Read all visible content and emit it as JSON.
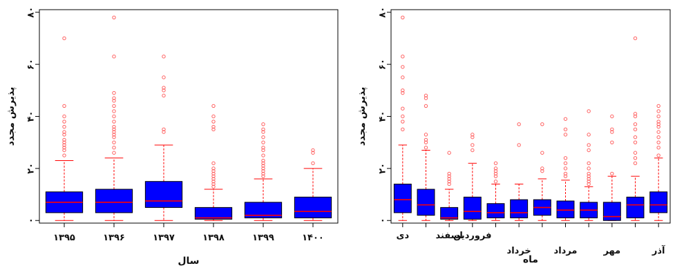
{
  "chart_data": [
    {
      "type": "boxplot",
      "xlabel": "سال",
      "ylabel": "پذیرش مجدد",
      "ylim": [
        -1,
        81
      ],
      "yticks": [
        0,
        20,
        40,
        60,
        80
      ],
      "ytick_labels": [
        "۰",
        "۲۰",
        "۴۰",
        "۶۰",
        "۸۰"
      ],
      "categories": [
        "۱۳۹۵",
        "۱۳۹۶",
        "۱۳۹۷",
        "۱۳۹۸",
        "۱۳۹۹",
        "۱۴۰۰"
      ],
      "boxes": [
        {
          "whisker_low": 0,
          "q1": 3,
          "median": 7,
          "q3": 11,
          "whisker_high": 23,
          "outliers": [
            25,
            27,
            28,
            29,
            30,
            31,
            33,
            34,
            36,
            38,
            40,
            44,
            70
          ]
        },
        {
          "whisker_low": 0,
          "q1": 3,
          "median": 7,
          "q3": 12,
          "whisker_high": 24,
          "outliers": [
            26,
            28,
            30,
            32,
            33,
            34,
            35,
            36,
            38,
            40,
            42,
            44,
            46,
            47,
            49,
            63,
            78
          ]
        },
        {
          "whisker_low": 0,
          "q1": 5,
          "median": 7.5,
          "q3": 15,
          "whisker_high": 29,
          "outliers": [
            34,
            35,
            48,
            50,
            51,
            55,
            63
          ]
        },
        {
          "whisker_low": 0,
          "q1": 0.5,
          "median": 1,
          "q3": 5,
          "whisker_high": 12,
          "outliers": [
            13,
            14,
            15,
            16,
            17,
            18,
            19,
            20,
            22,
            35,
            36,
            38,
            40,
            44
          ]
        },
        {
          "whisker_low": 0,
          "q1": 1,
          "median": 2,
          "q3": 7,
          "whisker_high": 16,
          "outliers": [
            17,
            18,
            19,
            20,
            21,
            22,
            23,
            25,
            27,
            28,
            30,
            32,
            34,
            35,
            37
          ]
        },
        {
          "whisker_low": 0,
          "q1": 1,
          "median": 3.5,
          "q3": 9,
          "whisker_high": 20,
          "outliers": [
            22,
            26,
            27
          ]
        }
      ]
    },
    {
      "type": "boxplot",
      "xlabel": "ماه",
      "ylabel": "پذیرش مجدد",
      "ylim": [
        -1,
        81
      ],
      "yticks": [
        0,
        20,
        40,
        60,
        80
      ],
      "ytick_labels": [
        "۰",
        "۲۰",
        "۴۰",
        "۶۰",
        "۸۰"
      ],
      "categories": [
        "دی",
        "",
        "اسفند",
        "فروردین",
        "",
        "خرداد",
        "",
        "مرداد",
        "",
        "مهر",
        "",
        "آذر"
      ],
      "boxes": [
        {
          "whisker_low": 0,
          "q1": 3,
          "median": 8,
          "q3": 14,
          "whisker_high": 29,
          "outliers": [
            35,
            38,
            40,
            43,
            49,
            50,
            55,
            59,
            63,
            78
          ]
        },
        {
          "whisker_low": 0,
          "q1": 2,
          "median": 6,
          "q3": 12,
          "whisker_high": 27,
          "outliers": [
            28,
            30,
            31,
            33,
            44,
            47,
            48
          ]
        },
        {
          "whisker_low": 0,
          "q1": 0.5,
          "median": 1,
          "q3": 5,
          "whisker_high": 12,
          "outliers": [
            14,
            15,
            16,
            17,
            18,
            26
          ]
        },
        {
          "whisker_low": 0,
          "q1": 0.5,
          "median": 3.5,
          "q3": 9,
          "whisker_high": 22,
          "outliers": [
            27,
            29,
            32,
            33
          ]
        },
        {
          "whisker_low": 0,
          "q1": 1,
          "median": 3,
          "q3": 6.5,
          "whisker_high": 14,
          "outliers": [
            15,
            17,
            18,
            19,
            20,
            22
          ]
        },
        {
          "whisker_low": 0,
          "q1": 1,
          "median": 3,
          "q3": 8,
          "whisker_high": 14,
          "outliers": [
            29,
            37
          ]
        },
        {
          "whisker_low": 0,
          "q1": 2,
          "median": 5,
          "q3": 8,
          "whisker_high": 16,
          "outliers": [
            19,
            20,
            26,
            37
          ]
        },
        {
          "whisker_low": 0,
          "q1": 1,
          "median": 4,
          "q3": 7.5,
          "whisker_high": 15.5,
          "outliers": [
            17,
            18,
            20,
            22,
            24,
            33,
            35,
            39
          ]
        },
        {
          "whisker_low": 0,
          "q1": 1,
          "median": 4,
          "q3": 7,
          "whisker_high": 13,
          "outliers": [
            14,
            15,
            16,
            17,
            18,
            20,
            22,
            27,
            29,
            33,
            42
          ]
        },
        {
          "whisker_low": 0,
          "q1": 0,
          "median": 1.5,
          "q3": 7,
          "whisker_high": 17,
          "outliers": [
            18,
            30,
            34,
            35,
            40
          ]
        },
        {
          "whisker_low": 0,
          "q1": 1,
          "median": 6,
          "q3": 9,
          "whisker_high": 17,
          "outliers": [
            22,
            24,
            26,
            30,
            32,
            35,
            37,
            40,
            41,
            70
          ]
        },
        {
          "whisker_low": 0,
          "q1": 3,
          "median": 6,
          "q3": 11,
          "whisker_high": 24,
          "outliers": [
            25,
            28,
            30,
            32,
            34,
            36,
            37,
            38,
            40,
            42,
            44
          ]
        }
      ]
    }
  ],
  "colors": {
    "box_fill": "#0000ff",
    "median": "#ff0000",
    "whisker": "#ff0000",
    "outlier": "#ff6060",
    "frame": "#000000"
  }
}
